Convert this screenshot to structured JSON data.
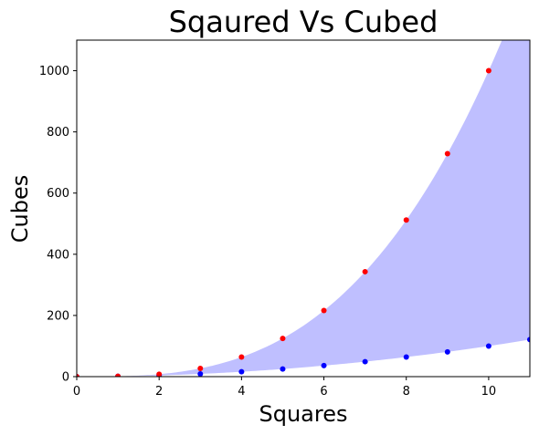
{
  "chart_data": {
    "type": "scatter",
    "title": "Sqaured Vs Cubed",
    "xlabel": "Squares",
    "ylabel": "Cubes",
    "xlim": [
      0,
      11
    ],
    "ylim": [
      0,
      1100
    ],
    "xticks": [
      0,
      2,
      4,
      6,
      8,
      10
    ],
    "yticks": [
      0,
      200,
      400,
      600,
      800,
      1000
    ],
    "grid": false,
    "fill_between": {
      "color": "#bfbfff",
      "lower": "x^2",
      "upper": "x^3"
    },
    "series": [
      {
        "color": "#0000ff",
        "x": [
          0,
          1,
          2,
          3,
          4,
          5,
          6,
          7,
          8,
          9,
          10,
          11
        ],
        "y": [
          0,
          1,
          4,
          9,
          16,
          25,
          36,
          49,
          64,
          81,
          100,
          121
        ]
      },
      {
        "color": "#ff0000",
        "x": [
          0,
          1,
          2,
          3,
          4,
          5,
          6,
          7,
          8,
          9,
          10
        ],
        "y": [
          0,
          1,
          8,
          27,
          64,
          125,
          216,
          343,
          512,
          729,
          1000
        ]
      }
    ]
  }
}
